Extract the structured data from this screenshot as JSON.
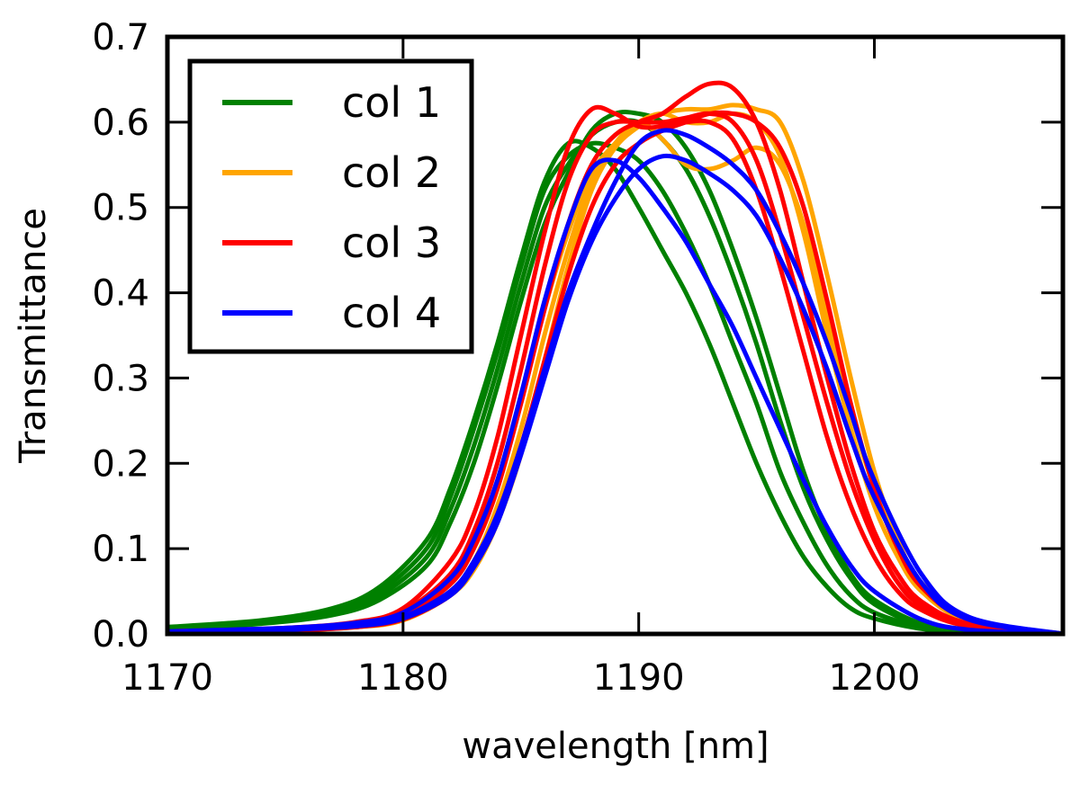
{
  "chart_data": {
    "type": "line",
    "title": "",
    "xlabel": "wavelength [nm]",
    "ylabel": "Transmittance",
    "xlim": [
      1170,
      1208
    ],
    "ylim": [
      0.0,
      0.7
    ],
    "x_ticks": [
      1170,
      1180,
      1190,
      1200
    ],
    "x_tick_labels": [
      "1170",
      "1180",
      "1190",
      "1200"
    ],
    "y_ticks": [
      0.0,
      0.1,
      0.2,
      0.3,
      0.4,
      0.5,
      0.6,
      0.7
    ],
    "y_tick_labels": [
      "0.0",
      "0.1",
      "0.2",
      "0.3",
      "0.4",
      "0.5",
      "0.6",
      "0.7"
    ],
    "grid": false,
    "legend": {
      "position": "top-left",
      "entries": [
        "col 1",
        "col 2",
        "col 3",
        "col 4"
      ]
    },
    "series": [
      {
        "name": "col 1",
        "group": "col 1",
        "color": "#008000",
        "x": [
          1170,
          1174,
          1177,
          1179,
          1181,
          1182,
          1183,
          1184,
          1185,
          1186,
          1187,
          1188,
          1189,
          1190,
          1191,
          1192,
          1193,
          1194,
          1195,
          1196,
          1197,
          1198,
          1199,
          1200,
          1202,
          1204,
          1208
        ],
        "y": [
          0.008,
          0.016,
          0.03,
          0.055,
          0.11,
          0.17,
          0.25,
          0.34,
          0.44,
          0.53,
          0.575,
          0.57,
          0.545,
          0.5,
          0.45,
          0.4,
          0.34,
          0.27,
          0.2,
          0.14,
          0.09,
          0.055,
          0.03,
          0.018,
          0.006,
          0.002,
          0.0
        ]
      },
      {
        "name": "col 1",
        "group": "col 1",
        "color": "#008000",
        "x": [
          1170,
          1174,
          1177,
          1179,
          1181,
          1182,
          1183,
          1184,
          1185,
          1186,
          1187,
          1188,
          1189,
          1190,
          1191,
          1192,
          1193,
          1194,
          1195,
          1196,
          1197,
          1198,
          1199,
          1200,
          1202,
          1204,
          1208
        ],
        "y": [
          0.007,
          0.015,
          0.028,
          0.05,
          0.1,
          0.16,
          0.24,
          0.33,
          0.43,
          0.52,
          0.56,
          0.575,
          0.57,
          0.555,
          0.52,
          0.47,
          0.41,
          0.34,
          0.27,
          0.19,
          0.13,
          0.08,
          0.045,
          0.025,
          0.008,
          0.003,
          0.0
        ]
      },
      {
        "name": "col 1",
        "group": "col 1",
        "color": "#008000",
        "x": [
          1170,
          1174,
          1177,
          1179,
          1181,
          1182,
          1183,
          1184,
          1185,
          1186,
          1187,
          1188,
          1189,
          1190,
          1191,
          1192,
          1193,
          1194,
          1195,
          1196,
          1197,
          1198,
          1199,
          1200,
          1202,
          1204,
          1208
        ],
        "y": [
          0.006,
          0.013,
          0.025,
          0.045,
          0.09,
          0.145,
          0.22,
          0.31,
          0.41,
          0.5,
          0.55,
          0.585,
          0.6,
          0.6,
          0.58,
          0.545,
          0.49,
          0.42,
          0.34,
          0.25,
          0.17,
          0.11,
          0.065,
          0.035,
          0.01,
          0.003,
          0.0
        ]
      },
      {
        "name": "col 1",
        "group": "col 1",
        "color": "#008000",
        "x": [
          1170,
          1174,
          1177,
          1179,
          1181,
          1182,
          1183,
          1184,
          1185,
          1186,
          1187,
          1188,
          1189,
          1190,
          1191,
          1192,
          1193,
          1194,
          1195,
          1196,
          1197,
          1198,
          1199,
          1200,
          1202,
          1204,
          1208
        ],
        "y": [
          0.005,
          0.012,
          0.022,
          0.04,
          0.08,
          0.13,
          0.2,
          0.29,
          0.39,
          0.48,
          0.54,
          0.59,
          0.61,
          0.61,
          0.6,
          0.57,
          0.52,
          0.45,
          0.37,
          0.28,
          0.19,
          0.12,
          0.07,
          0.04,
          0.012,
          0.004,
          0.0
        ]
      },
      {
        "name": "col 2",
        "group": "col 2",
        "color": "#FFA500",
        "x": [
          1170,
          1175,
          1178,
          1180,
          1182,
          1183,
          1184,
          1185,
          1186,
          1187,
          1188,
          1189,
          1190,
          1191,
          1192,
          1193,
          1194,
          1195,
          1196,
          1197,
          1198,
          1199,
          1200,
          1201,
          1202,
          1204,
          1208
        ],
        "y": [
          0.002,
          0.005,
          0.01,
          0.02,
          0.06,
          0.1,
          0.17,
          0.27,
          0.38,
          0.47,
          0.54,
          0.575,
          0.6,
          0.61,
          0.6,
          0.6,
          0.61,
          0.6,
          0.56,
          0.47,
          0.35,
          0.24,
          0.15,
          0.09,
          0.05,
          0.015,
          0.0
        ]
      },
      {
        "name": "col 2",
        "group": "col 2",
        "color": "#FFA500",
        "x": [
          1170,
          1175,
          1178,
          1180,
          1182,
          1183,
          1184,
          1185,
          1186,
          1187,
          1188,
          1189,
          1190,
          1191,
          1192,
          1193,
          1194,
          1195,
          1196,
          1197,
          1198,
          1199,
          1200,
          1201,
          1202,
          1204,
          1208
        ],
        "y": [
          0.002,
          0.005,
          0.009,
          0.018,
          0.05,
          0.085,
          0.15,
          0.24,
          0.35,
          0.45,
          0.53,
          0.575,
          0.6,
          0.58,
          0.55,
          0.545,
          0.555,
          0.57,
          0.55,
          0.48,
          0.37,
          0.26,
          0.17,
          0.1,
          0.055,
          0.017,
          0.0
        ]
      },
      {
        "name": "col 2",
        "group": "col 2",
        "color": "#FFA500",
        "x": [
          1170,
          1175,
          1178,
          1180,
          1182,
          1183,
          1184,
          1185,
          1186,
          1187,
          1188,
          1189,
          1190,
          1191,
          1192,
          1193,
          1194,
          1195,
          1196,
          1197,
          1198,
          1199,
          1200,
          1201,
          1202,
          1204,
          1208
        ],
        "y": [
          0.002,
          0.004,
          0.008,
          0.016,
          0.045,
          0.075,
          0.13,
          0.21,
          0.32,
          0.43,
          0.52,
          0.57,
          0.595,
          0.61,
          0.615,
          0.615,
          0.62,
          0.615,
          0.6,
          0.53,
          0.42,
          0.3,
          0.19,
          0.11,
          0.06,
          0.018,
          0.0
        ]
      },
      {
        "name": "col 3",
        "group": "col 3",
        "color": "#FF0000",
        "x": [
          1170,
          1175,
          1178,
          1180,
          1182,
          1183,
          1184,
          1185,
          1186,
          1187,
          1188,
          1189,
          1190,
          1191,
          1192,
          1193,
          1194,
          1195,
          1196,
          1197,
          1198,
          1199,
          1200,
          1201,
          1202,
          1204,
          1208
        ],
        "y": [
          0.003,
          0.007,
          0.014,
          0.03,
          0.085,
          0.14,
          0.23,
          0.35,
          0.47,
          0.57,
          0.615,
          0.61,
          0.595,
          0.595,
          0.6,
          0.6,
          0.58,
          0.52,
          0.43,
          0.33,
          0.23,
          0.15,
          0.09,
          0.05,
          0.028,
          0.009,
          0.0
        ]
      },
      {
        "name": "col 3",
        "group": "col 3",
        "color": "#FF0000",
        "x": [
          1170,
          1175,
          1178,
          1180,
          1182,
          1183,
          1184,
          1185,
          1186,
          1187,
          1188,
          1189,
          1190,
          1191,
          1192,
          1193,
          1194,
          1195,
          1196,
          1197,
          1198,
          1199,
          1200,
          1201,
          1202,
          1204,
          1208
        ],
        "y": [
          0.003,
          0.006,
          0.012,
          0.026,
          0.07,
          0.12,
          0.2,
          0.31,
          0.43,
          0.53,
          0.585,
          0.6,
          0.6,
          0.6,
          0.605,
          0.61,
          0.6,
          0.555,
          0.47,
          0.37,
          0.27,
          0.18,
          0.11,
          0.06,
          0.033,
          0.01,
          0.0
        ]
      },
      {
        "name": "col 3",
        "group": "col 3",
        "color": "#FF0000",
        "x": [
          1170,
          1175,
          1178,
          1180,
          1182,
          1183,
          1184,
          1185,
          1186,
          1187,
          1188,
          1189,
          1190,
          1191,
          1192,
          1193,
          1194,
          1195,
          1196,
          1197,
          1198,
          1199,
          1200,
          1201,
          1202,
          1204,
          1208
        ],
        "y": [
          0.002,
          0.005,
          0.01,
          0.021,
          0.058,
          0.1,
          0.17,
          0.27,
          0.38,
          0.48,
          0.55,
          0.585,
          0.6,
          0.61,
          0.63,
          0.645,
          0.64,
          0.6,
          0.52,
          0.41,
          0.3,
          0.2,
          0.12,
          0.07,
          0.038,
          0.012,
          0.0
        ]
      },
      {
        "name": "col 3",
        "group": "col 3",
        "color": "#FF0000",
        "x": [
          1170,
          1175,
          1178,
          1180,
          1182,
          1183,
          1184,
          1185,
          1186,
          1187,
          1188,
          1189,
          1190,
          1191,
          1192,
          1193,
          1194,
          1195,
          1196,
          1197,
          1198,
          1199,
          1200,
          1201,
          1202,
          1204,
          1208
        ],
        "y": [
          0.002,
          0.004,
          0.008,
          0.017,
          0.045,
          0.08,
          0.14,
          0.22,
          0.32,
          0.42,
          0.5,
          0.55,
          0.575,
          0.59,
          0.6,
          0.61,
          0.61,
          0.6,
          0.57,
          0.5,
          0.39,
          0.27,
          0.17,
          0.1,
          0.055,
          0.017,
          0.0
        ]
      },
      {
        "name": "col 4",
        "group": "col 4",
        "color": "#0000FF",
        "x": [
          1170,
          1175,
          1178,
          1180,
          1182,
          1183,
          1184,
          1185,
          1186,
          1187,
          1188,
          1189,
          1190,
          1191,
          1192,
          1193,
          1194,
          1195,
          1196,
          1197,
          1198,
          1199,
          1200,
          1202,
          1204,
          1208
        ],
        "y": [
          0.003,
          0.007,
          0.013,
          0.025,
          0.065,
          0.11,
          0.18,
          0.28,
          0.39,
          0.48,
          0.545,
          0.555,
          0.535,
          0.5,
          0.46,
          0.41,
          0.36,
          0.3,
          0.24,
          0.18,
          0.125,
          0.08,
          0.05,
          0.017,
          0.005,
          0.0
        ]
      },
      {
        "name": "col 4",
        "group": "col 4",
        "color": "#0000FF",
        "x": [
          1170,
          1175,
          1178,
          1180,
          1182,
          1183,
          1184,
          1185,
          1186,
          1187,
          1188,
          1189,
          1190,
          1191,
          1192,
          1193,
          1194,
          1195,
          1196,
          1197,
          1198,
          1199,
          1200,
          1202,
          1204,
          1208
        ],
        "y": [
          0.002,
          0.005,
          0.01,
          0.02,
          0.05,
          0.085,
          0.14,
          0.22,
          0.31,
          0.4,
          0.47,
          0.53,
          0.575,
          0.59,
          0.585,
          0.57,
          0.55,
          0.52,
          0.47,
          0.41,
          0.34,
          0.26,
          0.18,
          0.07,
          0.02,
          0.0
        ]
      },
      {
        "name": "col 4",
        "group": "col 4",
        "color": "#0000FF",
        "x": [
          1170,
          1175,
          1178,
          1180,
          1182,
          1183,
          1184,
          1185,
          1186,
          1187,
          1188,
          1189,
          1190,
          1191,
          1192,
          1193,
          1194,
          1195,
          1196,
          1197,
          1198,
          1199,
          1200,
          1202,
          1204,
          1208
        ],
        "y": [
          0.002,
          0.005,
          0.009,
          0.018,
          0.045,
          0.078,
          0.13,
          0.21,
          0.3,
          0.39,
          0.46,
          0.51,
          0.545,
          0.56,
          0.555,
          0.54,
          0.52,
          0.49,
          0.44,
          0.38,
          0.31,
          0.23,
          0.16,
          0.06,
          0.017,
          0.0
        ]
      }
    ]
  }
}
